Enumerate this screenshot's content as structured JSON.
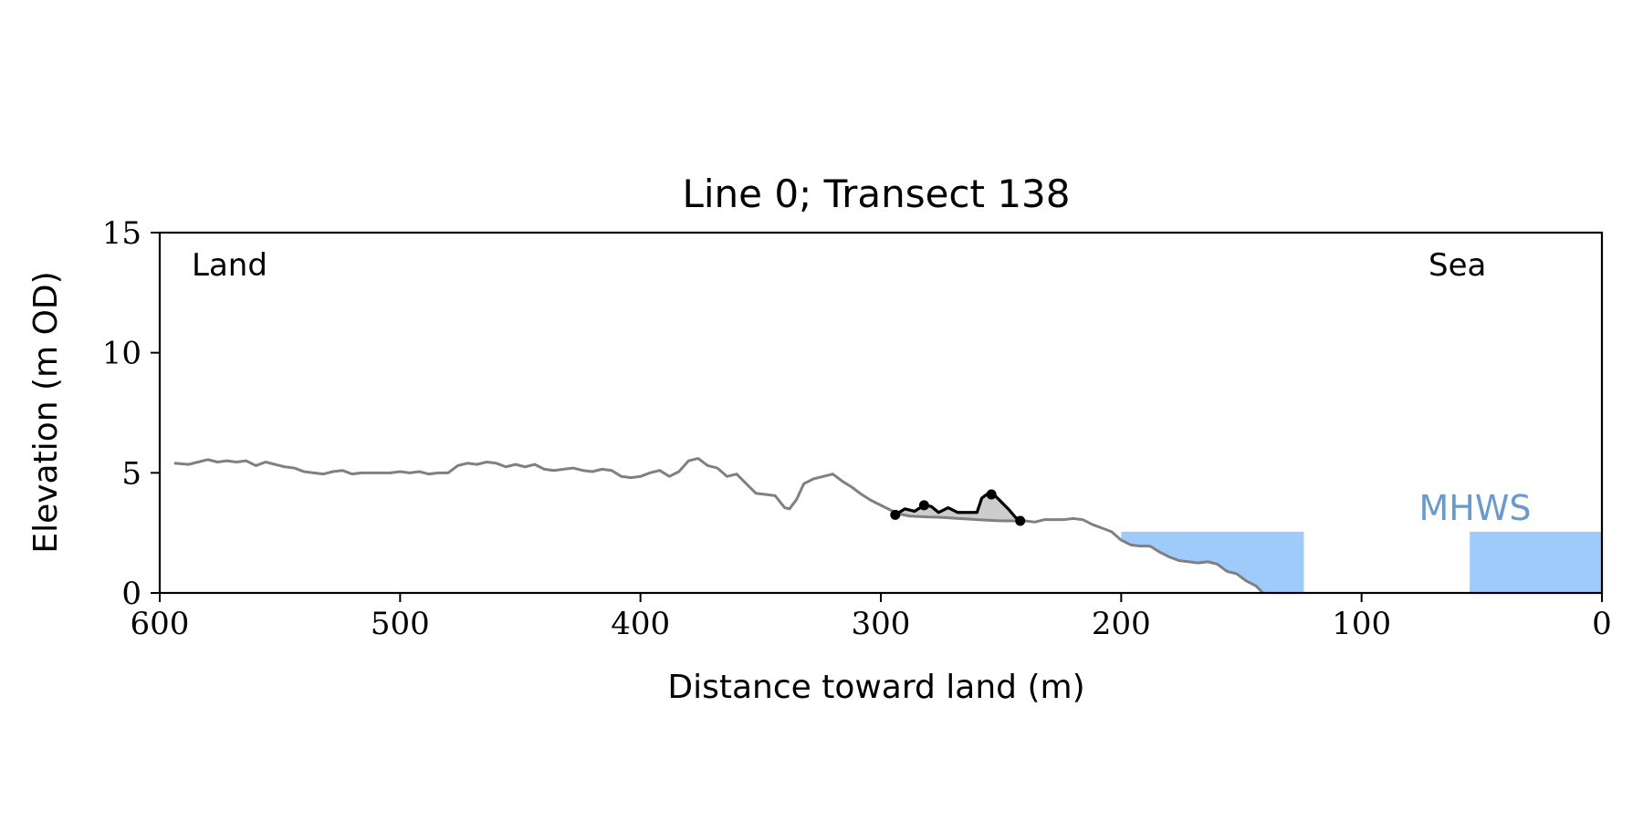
{
  "chart_data": {
    "type": "line",
    "title": "Line 0; Transect 138",
    "xlabel": "Distance toward land (m)",
    "ylabel": "Elevation (m OD)",
    "xlim": [
      600,
      0
    ],
    "ylim": [
      0,
      15
    ],
    "x_reversed": true,
    "grid": false,
    "xticks": [
      600,
      500,
      400,
      300,
      200,
      100,
      0
    ],
    "yticks": [
      0,
      5,
      10,
      15
    ],
    "annotations": {
      "land": "Land",
      "sea": "Sea",
      "mhws": "MHWS",
      "mhws_elevation": 2.55
    },
    "colors": {
      "profile": "#808080",
      "feature": "#000000",
      "feature_fill": "#cccccc",
      "water": "#9fcbfa",
      "mhws_label": "#6a9acb"
    },
    "water_regions": [
      {
        "x_from": 200,
        "x_to": 124,
        "elevation": 2.55,
        "clip_to_profile": true
      },
      {
        "x_from": 55,
        "x_to": 0,
        "elevation": 2.55,
        "clip_to_profile": false
      }
    ],
    "profile": {
      "x": [
        594,
        588,
        584,
        580,
        576,
        572,
        568,
        564,
        560,
        556,
        552,
        548,
        544,
        540,
        536,
        532,
        528,
        524,
        520,
        516,
        512,
        508,
        504,
        500,
        496,
        492,
        488,
        484,
        480,
        476,
        472,
        468,
        464,
        460,
        456,
        452,
        448,
        444,
        440,
        436,
        432,
        428,
        424,
        420,
        416,
        412,
        408,
        404,
        400,
        396,
        392,
        388,
        384,
        380,
        376,
        372,
        368,
        364,
        360,
        356,
        352,
        348,
        344,
        340,
        338,
        335,
        332,
        328,
        324,
        320,
        316,
        312,
        308,
        304,
        300,
        296,
        293,
        288,
        284,
        280,
        276,
        272,
        268,
        264,
        260,
        256,
        252,
        248,
        244,
        240,
        236,
        232,
        228,
        224,
        220,
        216,
        212,
        208,
        204,
        200,
        196,
        192,
        188,
        184,
        180,
        176,
        172,
        168,
        164,
        160,
        156,
        152,
        148,
        144,
        141
      ],
      "y": [
        5.4,
        5.35,
        5.45,
        5.55,
        5.45,
        5.5,
        5.45,
        5.5,
        5.3,
        5.45,
        5.35,
        5.25,
        5.2,
        5.05,
        5.0,
        4.95,
        5.05,
        5.1,
        4.95,
        5.0,
        5.0,
        5.0,
        5.0,
        5.05,
        5.0,
        5.05,
        4.95,
        5.0,
        5.0,
        5.3,
        5.4,
        5.35,
        5.45,
        5.4,
        5.25,
        5.35,
        5.25,
        5.35,
        5.15,
        5.1,
        5.15,
        5.2,
        5.1,
        5.05,
        5.15,
        5.1,
        4.85,
        4.8,
        4.85,
        5.0,
        5.1,
        4.85,
        5.05,
        5.5,
        5.6,
        5.3,
        5.2,
        4.85,
        4.95,
        4.55,
        4.15,
        4.1,
        4.05,
        3.55,
        3.5,
        3.9,
        4.55,
        4.75,
        4.85,
        4.95,
        4.65,
        4.4,
        4.1,
        3.85,
        3.65,
        3.45,
        3.3,
        3.2,
        3.18,
        3.16,
        3.15,
        3.13,
        3.1,
        3.08,
        3.05,
        3.03,
        3.01,
        3.0,
        3.0,
        3.0,
        2.95,
        3.05,
        3.05,
        3.05,
        3.1,
        3.05,
        2.85,
        2.7,
        2.55,
        2.2,
        2.0,
        1.95,
        1.95,
        1.7,
        1.5,
        1.35,
        1.3,
        1.25,
        1.3,
        1.2,
        0.9,
        0.8,
        0.5,
        0.3,
        0.0
      ]
    },
    "feature": {
      "x": [
        294,
        290,
        286,
        282,
        279,
        276,
        272,
        268,
        264,
        260,
        258,
        256,
        253,
        250,
        247,
        244,
        242
      ],
      "y": [
        3.25,
        3.5,
        3.4,
        3.65,
        3.6,
        3.35,
        3.55,
        3.35,
        3.35,
        3.35,
        3.95,
        4.1,
        4.1,
        3.8,
        3.5,
        3.15,
        3.0
      ],
      "markers": [
        [
          294,
          3.25
        ],
        [
          282,
          3.65
        ],
        [
          254,
          4.1
        ],
        [
          242,
          3.0
        ]
      ]
    }
  }
}
